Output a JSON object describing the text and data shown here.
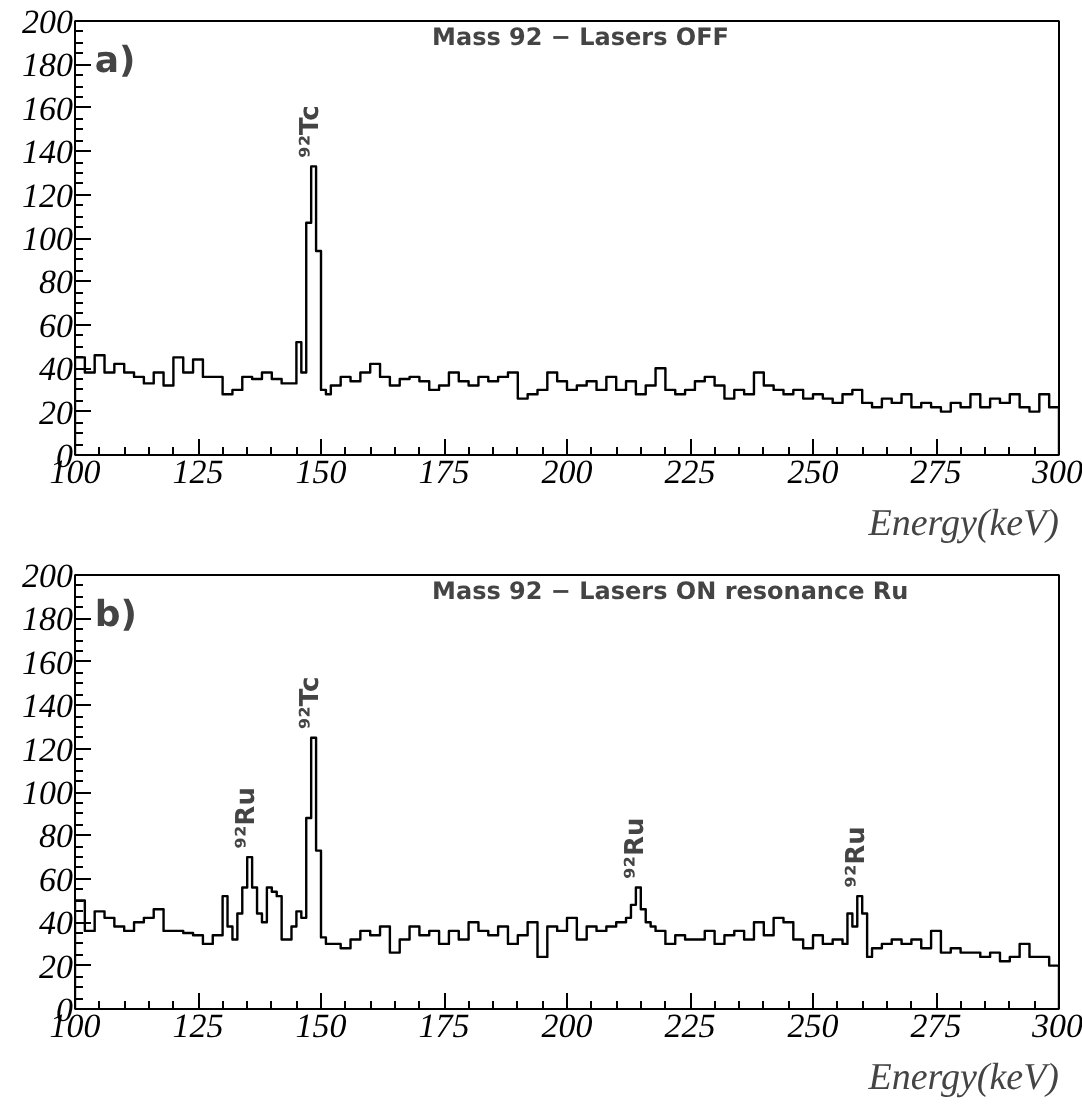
{
  "chart_data": [
    {
      "type": "histogram",
      "title": "Mass 92 − Lasers OFF",
      "xlabel": "Energy(keV)",
      "color": "#000000",
      "bins": [
        100,
        102,
        104,
        106,
        108,
        110,
        112,
        114,
        116,
        118,
        120,
        122,
        124,
        126,
        128,
        130,
        132,
        134,
        136,
        138,
        140,
        142,
        144,
        145,
        146,
        147,
        148,
        149,
        150,
        151,
        152,
        154,
        156,
        158,
        160,
        162,
        164,
        166,
        168,
        170,
        172,
        174,
        176,
        178,
        180,
        182,
        184,
        186,
        188,
        190,
        192,
        194,
        196,
        198,
        200,
        202,
        204,
        206,
        208,
        210,
        212,
        214,
        216,
        218,
        220,
        222,
        224,
        226,
        228,
        230,
        232,
        234,
        236,
        238,
        240,
        242,
        244,
        246,
        248,
        250,
        252,
        254,
        256,
        258,
        260,
        262,
        264,
        266,
        268,
        270,
        272,
        274,
        276,
        278,
        280,
        282,
        284,
        286,
        288,
        290,
        292,
        294,
        296,
        298,
        300
      ],
      "values": [
        45,
        38,
        46,
        38,
        42,
        38,
        36,
        33,
        38,
        32,
        45,
        38,
        44,
        36,
        36,
        28,
        30,
        36,
        35,
        38,
        35,
        33,
        33,
        52,
        38,
        107,
        133,
        94,
        30,
        28,
        32,
        36,
        34,
        38,
        42,
        36,
        32,
        35,
        36,
        34,
        30,
        32,
        38,
        34,
        32,
        36,
        34,
        36,
        38,
        26,
        28,
        30,
        38,
        34,
        30,
        32,
        34,
        30,
        36,
        30,
        34,
        28,
        32,
        40,
        30,
        28,
        30,
        34,
        36,
        32,
        26,
        30,
        28,
        38,
        32,
        30,
        28,
        30,
        26,
        28,
        26,
        24,
        28,
        30,
        24,
        22,
        26,
        24,
        28,
        22,
        24,
        22,
        20,
        24,
        22,
        28,
        22,
        26,
        24,
        28,
        22,
        20,
        28,
        22
      ],
      "xlim": [
        100,
        300
      ],
      "xticks": [
        100,
        125,
        150,
        175,
        200,
        225,
        250,
        275,
        300
      ],
      "ylim": [
        0,
        200
      ],
      "yticks": [
        0,
        20,
        40,
        60,
        80,
        100,
        120,
        140,
        160,
        180,
        200
      ],
      "annotations": [
        "a)",
        {
          "text": "⁹²Tc",
          "x": 148,
          "y": 137
        }
      ]
    },
    {
      "type": "histogram",
      "title": "Mass 92 − Lasers ON resonance Ru",
      "xlabel": "Energy(keV)",
      "color": "#000000",
      "bins": [
        100,
        102,
        104,
        106,
        108,
        110,
        112,
        114,
        116,
        118,
        120,
        122,
        124,
        126,
        128,
        130,
        131,
        132,
        133,
        134,
        135,
        136,
        137,
        138,
        139,
        140,
        141,
        142,
        143,
        144,
        145,
        146,
        147,
        148,
        149,
        150,
        151,
        152,
        154,
        156,
        158,
        160,
        162,
        164,
        166,
        168,
        170,
        172,
        174,
        176,
        178,
        180,
        182,
        184,
        186,
        188,
        190,
        192,
        194,
        196,
        198,
        200,
        202,
        204,
        206,
        208,
        210,
        212,
        213,
        214,
        215,
        216,
        217,
        218,
        220,
        222,
        224,
        226,
        228,
        230,
        232,
        234,
        236,
        238,
        240,
        242,
        244,
        246,
        248,
        250,
        252,
        254,
        256,
        257,
        258,
        259,
        260,
        261,
        262,
        264,
        266,
        268,
        270,
        272,
        274,
        276,
        278,
        280,
        282,
        284,
        286,
        288,
        290,
        292,
        294,
        296,
        298,
        300
      ],
      "values": [
        50,
        36,
        45,
        42,
        38,
        36,
        40,
        42,
        46,
        36,
        36,
        35,
        34,
        30,
        34,
        52,
        38,
        32,
        44,
        56,
        70,
        56,
        44,
        40,
        56,
        54,
        52,
        32,
        32,
        38,
        45,
        42,
        88,
        125,
        73,
        33,
        30,
        30,
        28,
        32,
        36,
        34,
        38,
        26,
        32,
        38,
        34,
        36,
        30,
        36,
        32,
        40,
        36,
        34,
        38,
        30,
        34,
        40,
        24,
        38,
        36,
        42,
        32,
        38,
        36,
        38,
        40,
        42,
        48,
        56,
        46,
        40,
        38,
        36,
        30,
        34,
        32,
        32,
        36,
        30,
        34,
        36,
        32,
        40,
        34,
        42,
        40,
        32,
        28,
        34,
        30,
        32,
        30,
        44,
        38,
        52,
        44,
        24,
        28,
        30,
        32,
        30,
        32,
        28,
        36,
        26,
        28,
        26,
        26,
        24,
        26,
        22,
        24,
        30,
        24,
        24,
        20
      ],
      "xlim": [
        100,
        300
      ],
      "xticks": [
        100,
        125,
        150,
        175,
        200,
        225,
        250,
        275,
        300
      ],
      "ylim": [
        0,
        200
      ],
      "yticks": [
        0,
        20,
        40,
        60,
        80,
        100,
        120,
        140,
        160,
        180,
        200
      ],
      "annotations": [
        "b)",
        {
          "text": "⁹²Ru",
          "x": 135,
          "y": 74
        },
        {
          "text": "⁹²Tc",
          "x": 148,
          "y": 129
        },
        {
          "text": "⁹²Ru",
          "x": 214,
          "y": 60
        },
        {
          "text": "⁹²Ru",
          "x": 259,
          "y": 56
        }
      ]
    }
  ]
}
